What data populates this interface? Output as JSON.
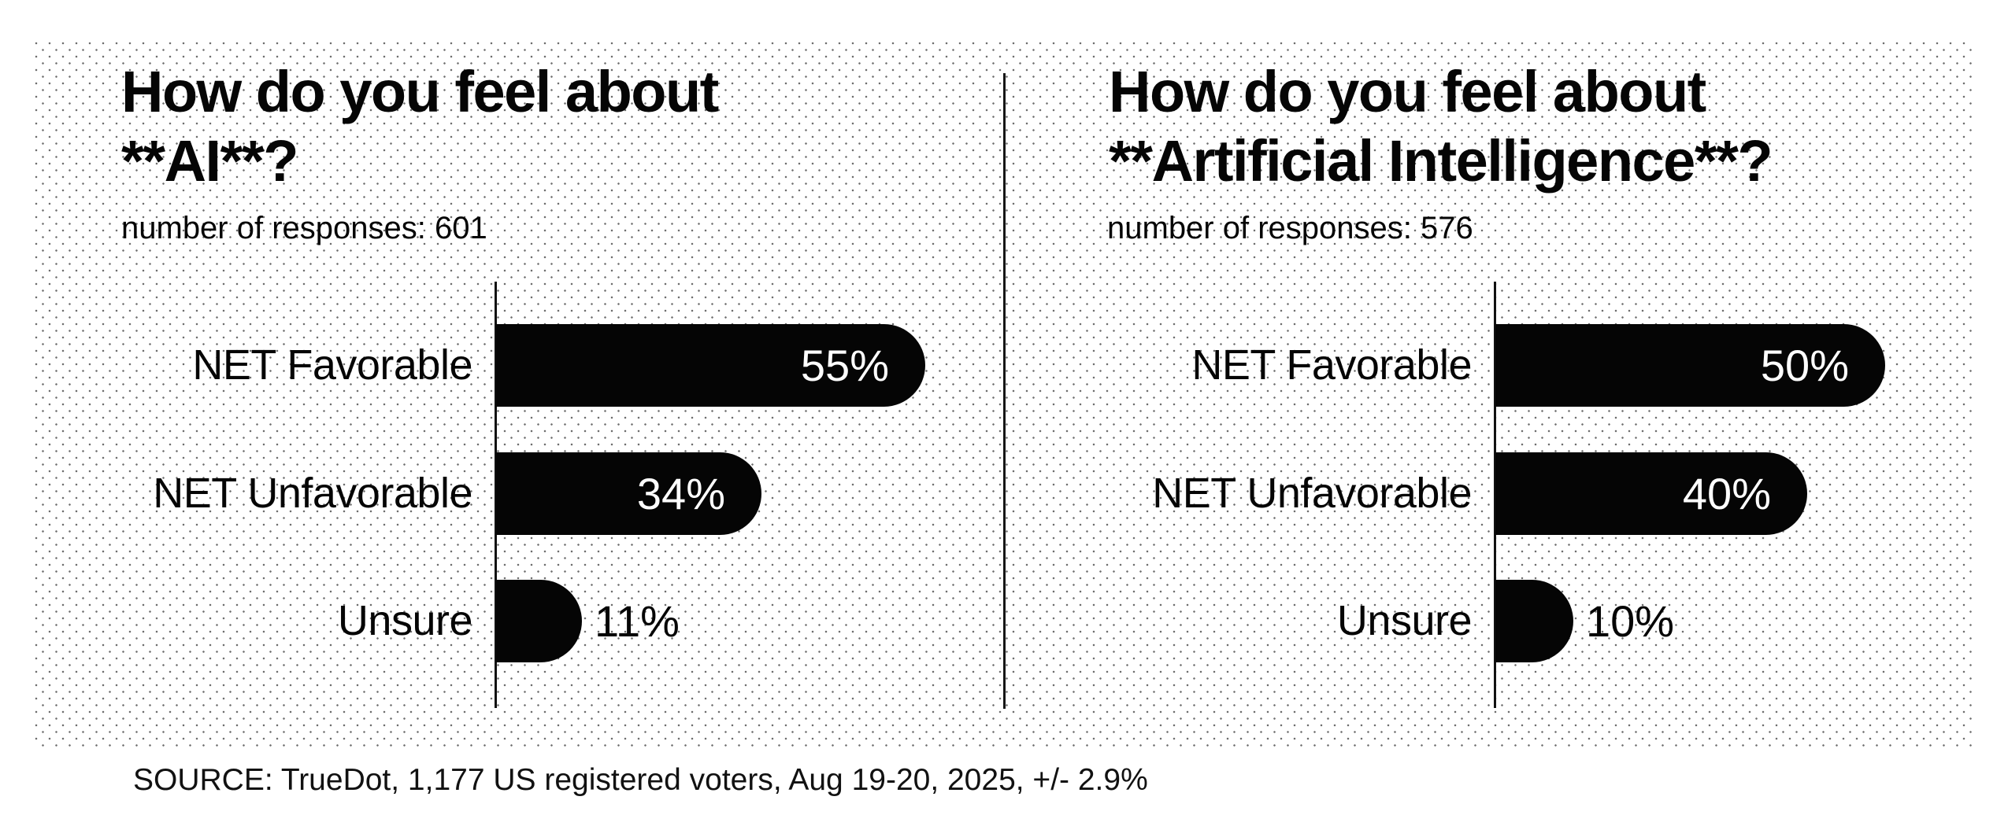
{
  "page": {
    "background": "#ffffff",
    "bar_color": "#050505",
    "dot_color": "#6e6e6e",
    "source_note": "SOURCE: TrueDot, 1,177 US registered voters, Aug 19-20, 2025, +/- 2.9%"
  },
  "chart_data": {
    "type": "bar",
    "orientation": "horizontal",
    "unit": "%",
    "grid": "dotted-texture-background",
    "categories": [
      "NET Favorable",
      "NET Unfavorable",
      "Unsure"
    ],
    "charts": [
      {
        "title": "How do you feel about\n**AI**?",
        "subtitle": "number of responses: 601",
        "responses": 601,
        "series": [
          {
            "label": "NET Favorable",
            "value": 55
          },
          {
            "label": "NET Unfavorable",
            "value": 34
          },
          {
            "label": "Unsure",
            "value": 11
          }
        ]
      },
      {
        "title": "How do you feel about\n**Artificial Intelligence**?",
        "subtitle": "number of responses: 576",
        "responses": 576,
        "series": [
          {
            "label": "NET Favorable",
            "value": 50
          },
          {
            "label": "NET Unfavorable",
            "value": 40
          },
          {
            "label": "Unsure",
            "value": 10
          }
        ]
      }
    ],
    "value_label_format": "{value}%",
    "xlim": [
      0,
      60
    ],
    "legend": "none"
  }
}
